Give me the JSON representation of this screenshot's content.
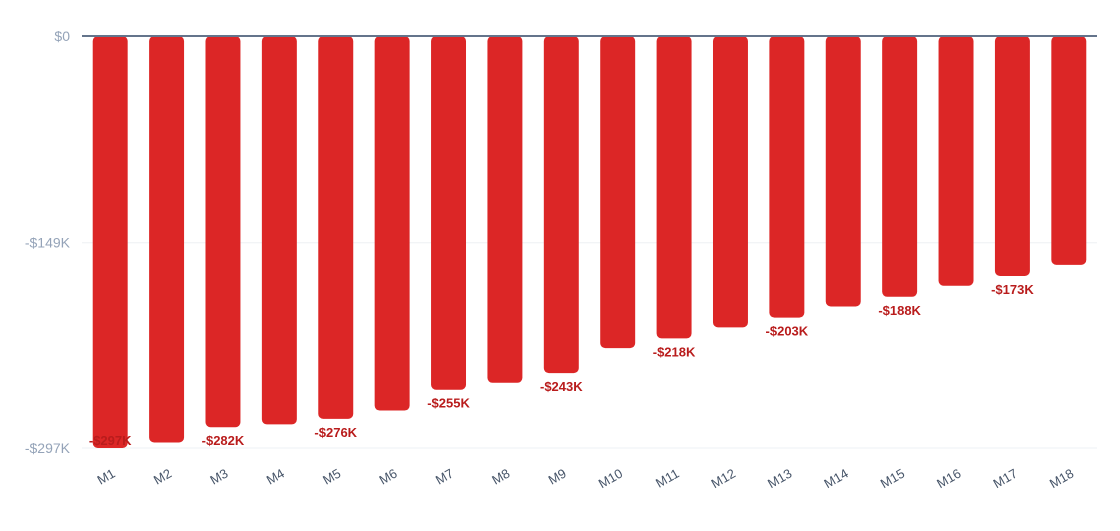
{
  "chart_data": {
    "type": "bar",
    "categories": [
      "M1",
      "M2",
      "M3",
      "M4",
      "M5",
      "M6",
      "M7",
      "M8",
      "M9",
      "M10",
      "M11",
      "M12",
      "M13",
      "M14",
      "M15",
      "M16",
      "M17",
      "M18"
    ],
    "series": [
      {
        "values": [
          -297,
          -293,
          -282,
          -280,
          -276,
          -270,
          -255,
          -250,
          -243,
          -225,
          -218,
          -210,
          -203,
          -195,
          -188,
          -180,
          -173,
          -165
        ],
        "color": "#dc2626"
      }
    ],
    "data_labels": [
      "-$297K",
      "",
      "-$282K",
      "",
      "-$276K",
      "",
      "-$255K",
      "",
      "-$243K",
      "",
      "-$218K",
      "",
      "-$203K",
      "",
      "-$188K",
      "",
      "-$173K",
      ""
    ],
    "y_ticks": [
      {
        "value": 0,
        "label": "$0"
      },
      {
        "value": -149,
        "label": "-$149K"
      },
      {
        "value": -297,
        "label": "-$297K"
      }
    ],
    "ylim": [
      -297,
      0
    ],
    "y_unit": "$K",
    "title": "",
    "xlabel": "",
    "ylabel": "",
    "grid": true,
    "legend": "none",
    "colors": {
      "bar": "#dc2626",
      "data_label": "#b91c1c",
      "zero_line": "#64748b",
      "grid": "#eef0f4",
      "tick_label": "#94a3b8",
      "category_label": "#475569"
    }
  }
}
